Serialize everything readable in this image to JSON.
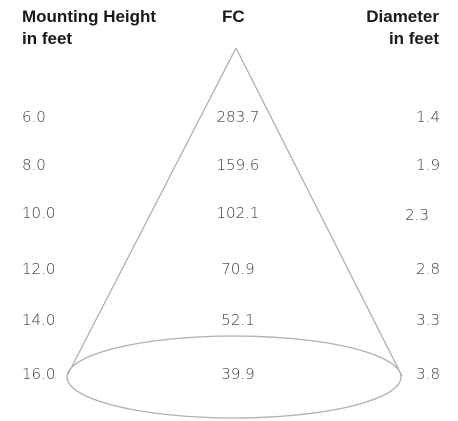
{
  "headers": {
    "mounting_height_line1": "Mounting Height",
    "mounting_height_line2": "in feet",
    "fc": "FC",
    "diameter_line1": "Diameter",
    "diameter_line2": "in feet"
  },
  "rows": [
    {
      "height": "6.0",
      "fc": "283.7",
      "diameter": "1.4"
    },
    {
      "height": "8.0",
      "fc": "159.6",
      "diameter": "1.9"
    },
    {
      "height": "10.0",
      "fc": "102.1",
      "diameter": "2.3"
    },
    {
      "height": "12.0",
      "fc": "70.9",
      "diameter": "2.8"
    },
    {
      "height": "14.0",
      "fc": "52.1",
      "diameter": "3.3"
    },
    {
      "height": "16.0",
      "fc": "39.9",
      "diameter": "3.8"
    }
  ],
  "colors": {
    "cone_stroke": "#b0b0b0",
    "header_text": "#1a1a1a",
    "body_text": "#3a3a3a"
  }
}
